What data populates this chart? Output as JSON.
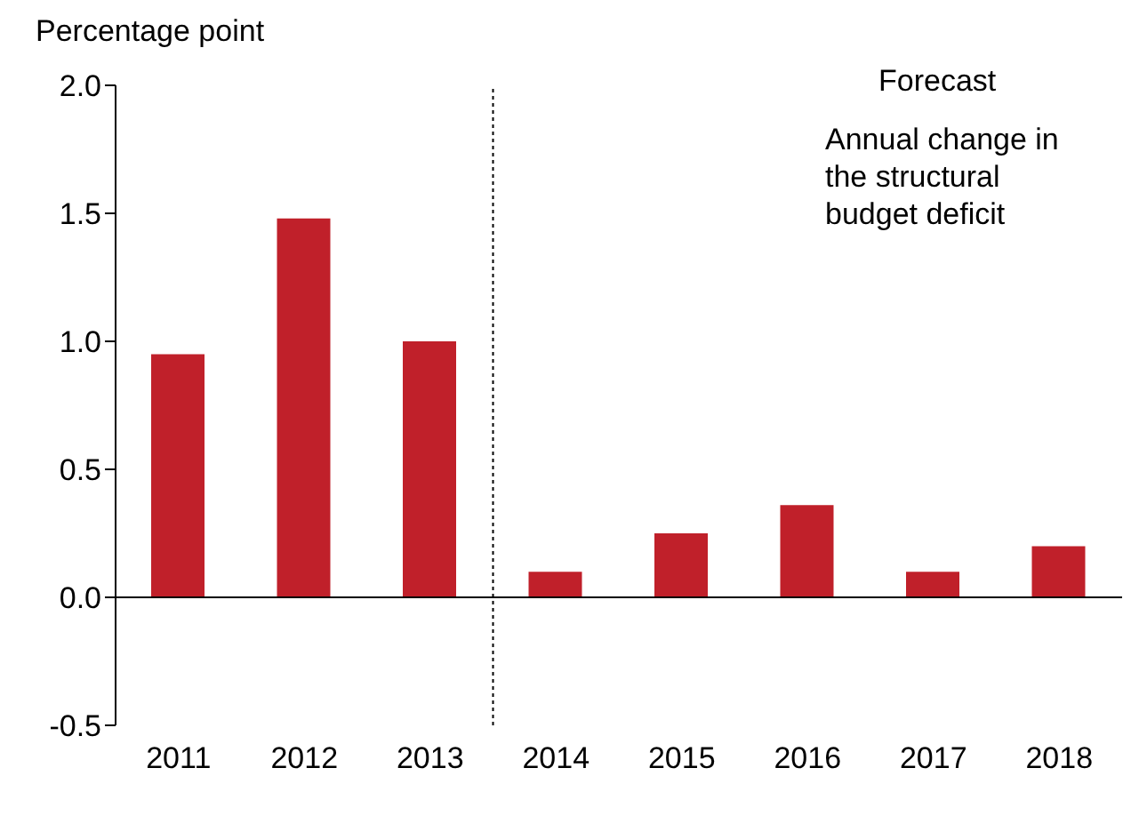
{
  "chart_data": {
    "type": "bar",
    "ylabel": "Percentage point",
    "x": [
      2011,
      2012,
      2013,
      2014,
      2015,
      2016,
      2017,
      2018
    ],
    "values": [
      0.95,
      1.48,
      1.0,
      0.1,
      0.25,
      0.36,
      0.1,
      0.2
    ],
    "color": "#c0202a",
    "xlim": [
      2010.5,
      2018.5
    ],
    "xticks": [
      2011,
      2012,
      2013,
      2014,
      2015,
      2016,
      2017,
      2018
    ],
    "ylim": [
      -0.5,
      2.0
    ],
    "yticks": [
      {
        "value": -0.5,
        "label": "-0.5"
      },
      {
        "value": 0,
        "label": "0.0"
      },
      {
        "value": 0.5,
        "label": "0.5"
      },
      {
        "value": 1,
        "label": "1.0"
      },
      {
        "value": 1.5,
        "label": "1.5"
      },
      {
        "value": 2,
        "label": "2.0"
      }
    ],
    "ref_lines": [
      {
        "axis": "x",
        "value": 2013.5,
        "line_style": "dotted",
        "color": "#000000"
      }
    ],
    "annotations": [
      "Forecast",
      "Annual change in the structural budget deficit"
    ]
  }
}
